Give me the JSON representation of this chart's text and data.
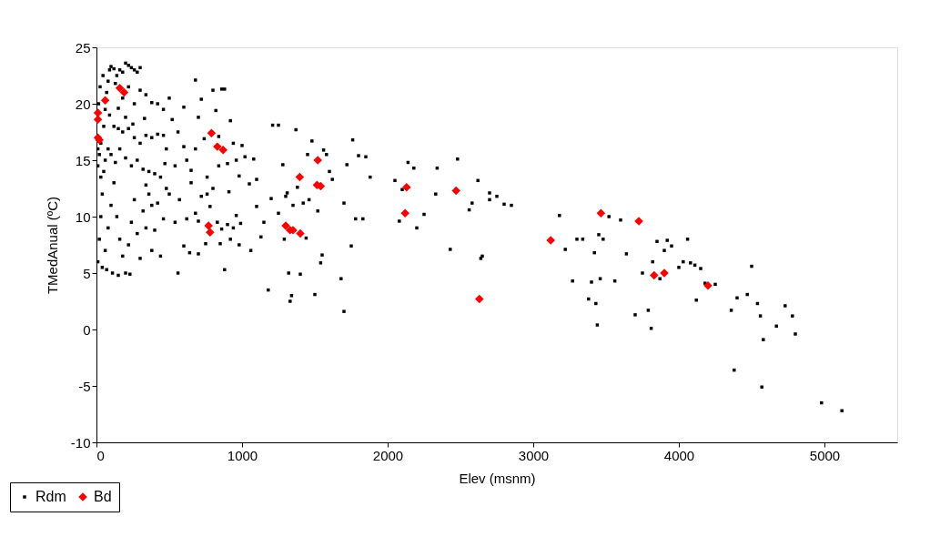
{
  "chart_data": {
    "type": "scatter",
    "xlabel": "Elev (msnm)",
    "ylabel": "TMedAnual (ºC)",
    "xlim": [
      0,
      5500
    ],
    "xticks": [
      0,
      1000,
      2000,
      3000,
      4000,
      5000
    ],
    "ylim": [
      -10,
      25
    ],
    "yticks": [
      -10,
      -5,
      0,
      5,
      10,
      15,
      20,
      25
    ],
    "grid": false,
    "legend": "bottom left",
    "series": [
      {
        "name": "Rdm",
        "color": "#000000",
        "marker": "square",
        "x": [
          2050,
          2080,
          2100,
          2140,
          2180,
          2200,
          2250,
          2330,
          2340,
          2430,
          2480,
          2560,
          2580,
          2620,
          2640,
          2650,
          2700,
          2700,
          2750,
          2800,
          2850,
          3180,
          3220,
          3300,
          3380,
          3400,
          3430,
          3440,
          3420,
          3450,
          3480,
          3520,
          3560,
          3600,
          3640,
          3700,
          3750,
          3790,
          3810,
          3820,
          3850,
          3870,
          3900,
          3950,
          3920,
          4000,
          4030,
          4060,
          4080,
          4110,
          4120,
          4150,
          4180,
          4250,
          4360,
          4380,
          4400,
          4470,
          4500,
          4540,
          4560,
          4580,
          4570,
          4670,
          4730,
          4780,
          4800,
          4980,
          5120,
          3270,
          3340,
          3460,
          1020,
          1050,
          1100,
          1130,
          1180,
          1200,
          1210,
          1250,
          1280,
          1300,
          1310,
          1320,
          1330,
          1340,
          1350,
          1370,
          1380,
          1400,
          1420,
          1450,
          1460,
          1480,
          1500,
          1520,
          1540,
          1550,
          1560,
          1580,
          1600,
          1620,
          1680,
          1700,
          1700,
          1720,
          1750,
          1760,
          1780,
          1800,
          1830,
          1850,
          1880,
          1150,
          1250,
          1290,
          1440,
          1060,
          1100,
          1000,
          1080,
          500,
          520,
          560,
          600,
          620,
          650,
          680,
          700,
          720,
          740,
          760,
          800,
          820,
          840,
          860,
          880,
          900,
          920,
          940,
          960,
          980,
          500,
          540,
          570,
          600,
          620,
          650,
          680,
          700,
          720,
          750,
          780,
          800,
          830,
          850,
          880,
          900,
          920,
          940,
          960,
          980,
          560,
          640,
          700,
          760,
          840,
          860,
          910,
          990,
          540,
          600,
          680,
          10,
          20,
          30,
          40,
          50,
          60,
          20,
          30,
          50,
          60,
          70,
          80,
          90,
          100,
          120,
          140,
          160,
          180,
          200,
          220,
          240,
          260,
          280,
          300,
          130,
          180,
          220,
          260,
          300,
          340,
          380,
          420,
          460,
          90,
          120,
          150,
          180,
          220,
          260,
          300,
          340,
          380,
          420,
          460,
          80,
          100,
          130,
          160,
          200,
          240,
          280,
          320,
          360,
          400,
          440,
          480,
          40,
          60,
          80,
          100,
          120,
          140,
          160,
          180,
          200,
          220,
          240,
          260,
          280,
          300,
          320,
          340,
          360,
          380,
          400,
          420,
          440,
          460,
          70,
          110,
          150,
          230,
          10,
          10,
          30,
          15,
          25,
          45,
          150,
          200,
          250,
          330,
          480,
          470,
          380,
          340
        ],
        "values": [
          13.2,
          9.6,
          12.4,
          14.8,
          14.3,
          9.0,
          10.2,
          12.0,
          14.3,
          7.1,
          15.1,
          10.6,
          11.2,
          13.2,
          6.3,
          6.5,
          12.1,
          11.5,
          11.8,
          11.1,
          11.0,
          10.1,
          7.1,
          8.0,
          2.7,
          4.2,
          2.3,
          0.4,
          6.8,
          8.4,
          8.0,
          10.0,
          4.3,
          9.7,
          6.7,
          1.3,
          5.0,
          1.7,
          0.1,
          6.0,
          7.8,
          4.5,
          7.0,
          7.4,
          7.9,
          5.5,
          6.0,
          8.0,
          5.9,
          5.7,
          2.6,
          5.4,
          4.1,
          4.0,
          1.7,
          -3.6,
          2.8,
          3.1,
          5.6,
          2.3,
          1.2,
          -0.9,
          -5.1,
          0.3,
          2.1,
          1.2,
          -0.4,
          -6.5,
          -7.2,
          4.3,
          8.0,
          4.5,
          15.3,
          12.9,
          13.3,
          8.2,
          3.5,
          11.6,
          18.1,
          18.1,
          14.6,
          11.8,
          12.1,
          5.0,
          2.5,
          3.0,
          11.0,
          17.7,
          12.6,
          4.9,
          11.2,
          15.5,
          11.5,
          16.7,
          3.1,
          10.5,
          5.9,
          6.6,
          15.9,
          15.5,
          14.0,
          13.3,
          4.5,
          1.6,
          11.2,
          14.6,
          7.4,
          16.8,
          9.8,
          15.4,
          9.8,
          15.3,
          13.5,
          9.5,
          10.3,
          8.0,
          8.1,
          7.0,
          10.9,
          16.3,
          15.1,
          20.5,
          18.6,
          17.5,
          19.7,
          15.0,
          14.1,
          22.1,
          18.8,
          20.4,
          16.9,
          13.5,
          21.2,
          19.4,
          17.1,
          21.3,
          21.3,
          14.7,
          18.5,
          16.5,
          15.0,
          13.6,
          12.0,
          9.5,
          11.5,
          7.4,
          9.8,
          13.0,
          10.3,
          9.6,
          11.8,
          7.6,
          10.9,
          12.5,
          9.5,
          7.6,
          5.3,
          9.3,
          8.0,
          9.0,
          10.1,
          7.5,
          5.0,
          6.8,
          6.7,
          12.0,
          14.5,
          8.9,
          12.2,
          9.4,
          14.5,
          16.2,
          16.0,
          6.0,
          8,
          10,
          12,
          14,
          15,
          15.5,
          16.5,
          18,
          19.5,
          21,
          22,
          23,
          23.3,
          23.1,
          22.5,
          23,
          22.8,
          23.6,
          23.4,
          23.2,
          23.0,
          22.8,
          23.2,
          21.8,
          20.5,
          21.5,
          20.0,
          21.2,
          20.8,
          20.1,
          20.0,
          19.5,
          19,
          18,
          17.8,
          17.5,
          17.8,
          17.0,
          16.5,
          17.2,
          17.0,
          17.3,
          17.2,
          16,
          15.5,
          14.8,
          16,
          15.2,
          14.5,
          15,
          14.2,
          14.0,
          13.8,
          13.5,
          12.5,
          5.5,
          7,
          9,
          11,
          13,
          10,
          8,
          6.5,
          5,
          7.5,
          9.5,
          11.5,
          8.5,
          6.3,
          10.5,
          9,
          12,
          7,
          8.8,
          11.2,
          6.5,
          9.8,
          5.3,
          5.0,
          4.8,
          4.9,
          14.5,
          16.0,
          13.5,
          20.0,
          21.5,
          22.5,
          19.6,
          18.8,
          18.2,
          18.7,
          16.0,
          14.7,
          11.0,
          12.8
        ]
      },
      {
        "name": "Bd",
        "color": "#ff0000",
        "marker": "diamond",
        "x": [
          10,
          10,
          10,
          20,
          60,
          160,
          190,
          790,
          830,
          870,
          770,
          780,
          1300,
          1330,
          1350,
          1400,
          1396,
          1520,
          1515,
          1540,
          2130,
          2120,
          2470,
          2630,
          3120,
          3465,
          3725,
          3830,
          3900,
          4200
        ],
        "values": [
          17.0,
          19.2,
          18.6,
          16.8,
          20.3,
          21.4,
          21.0,
          17.4,
          16.2,
          15.9,
          9.2,
          8.6,
          9.2,
          8.8,
          8.8,
          8.5,
          13.5,
          15.0,
          12.8,
          12.7,
          12.6,
          10.3,
          12.3,
          2.7,
          7.9,
          10.3,
          9.6,
          4.8,
          5.0,
          3.9
        ]
      }
    ]
  }
}
